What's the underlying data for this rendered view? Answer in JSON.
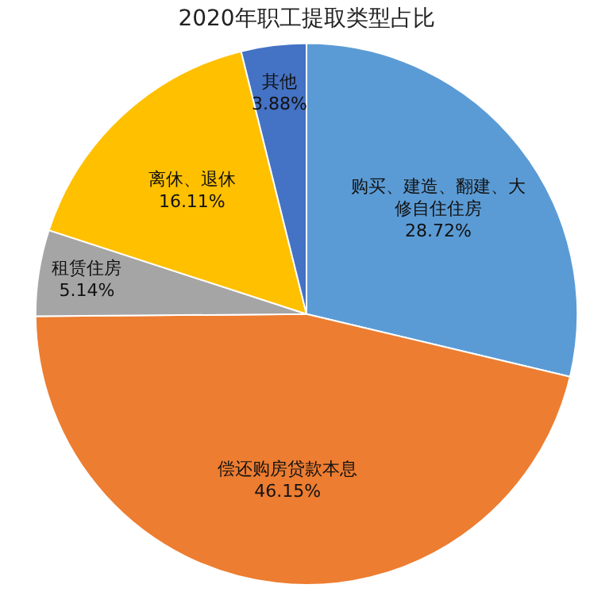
{
  "chart_data": {
    "type": "pie",
    "title": "2020年职工提取类型占比",
    "categories": [
      "购买、建造、翻建、大修自住住房",
      "偿还购房贷款本息",
      "租赁住房",
      "离休、退休",
      "其他"
    ],
    "values": [
      28.72,
      46.15,
      5.14,
      16.11,
      3.88
    ],
    "value_labels": [
      "28.72%",
      "46.15%",
      "5.14%",
      "16.11%",
      "3.88%"
    ],
    "colors": [
      "#5b9bd5",
      "#ed7d31",
      "#a5a5a5",
      "#ffc000",
      "#4472c4"
    ],
    "legend": false
  }
}
